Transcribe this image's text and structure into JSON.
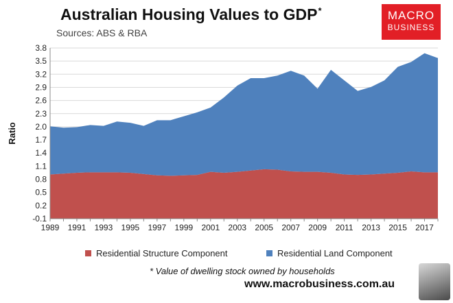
{
  "header": {
    "title": "Australian Housing Values to GDP",
    "title_mark": "*",
    "subtitle": "Sources: ABS & RBA"
  },
  "logo": {
    "line1": "MACRO",
    "line2": "BUSINESS",
    "color": "#e21f26"
  },
  "footer": {
    "footnote": "* Value of dwelling stock owned by households",
    "url": "www.macrobusiness.com.au"
  },
  "wolf_icon": "wolf-head-icon",
  "chart_data": {
    "type": "area",
    "stacked": true,
    "title": "Australian Housing Values to GDP",
    "xlabel": "",
    "ylabel": "Ratio",
    "xlim": [
      1989,
      2018
    ],
    "ylim": [
      -0.1,
      3.8
    ],
    "yticks": [
      "3.8",
      "3.5",
      "3.2",
      "2.9",
      "2.6",
      "2.3",
      "2.0",
      "1.7",
      "1.4",
      "1.1",
      "0.8",
      "0.5",
      "0.2",
      "-0.1"
    ],
    "xticks": [
      "1989",
      "1991",
      "1993",
      "1995",
      "1997",
      "1999",
      "2001",
      "2003",
      "2005",
      "2007",
      "2009",
      "2011",
      "2013",
      "2015",
      "2017"
    ],
    "x": [
      1989,
      1990,
      1991,
      1992,
      1993,
      1994,
      1995,
      1996,
      1997,
      1998,
      1999,
      2000,
      2001,
      2002,
      2003,
      2004,
      2005,
      2006,
      2007,
      2008,
      2009,
      2010,
      2011,
      2012,
      2013,
      2014,
      2015,
      2016,
      2017,
      2018
    ],
    "series": [
      {
        "name": "Residential Structure Component",
        "color": "#c0504d",
        "values": [
          0.91,
          0.93,
          0.95,
          0.96,
          0.96,
          0.96,
          0.95,
          0.92,
          0.89,
          0.88,
          0.89,
          0.9,
          0.97,
          0.95,
          0.97,
          1.0,
          1.03,
          1.02,
          0.98,
          0.97,
          0.97,
          0.95,
          0.91,
          0.9,
          0.91,
          0.93,
          0.95,
          0.98,
          0.96,
          0.96
        ]
      },
      {
        "name": "Residential Land Component",
        "color": "#4f81bd",
        "values": [
          1.1,
          1.05,
          1.04,
          1.08,
          1.06,
          1.16,
          1.14,
          1.1,
          1.26,
          1.27,
          1.35,
          1.43,
          1.47,
          1.72,
          1.97,
          2.11,
          2.08,
          2.15,
          2.3,
          2.2,
          1.9,
          2.35,
          2.15,
          1.92,
          2.0,
          2.13,
          2.42,
          2.5,
          2.72,
          2.61
        ]
      }
    ]
  }
}
